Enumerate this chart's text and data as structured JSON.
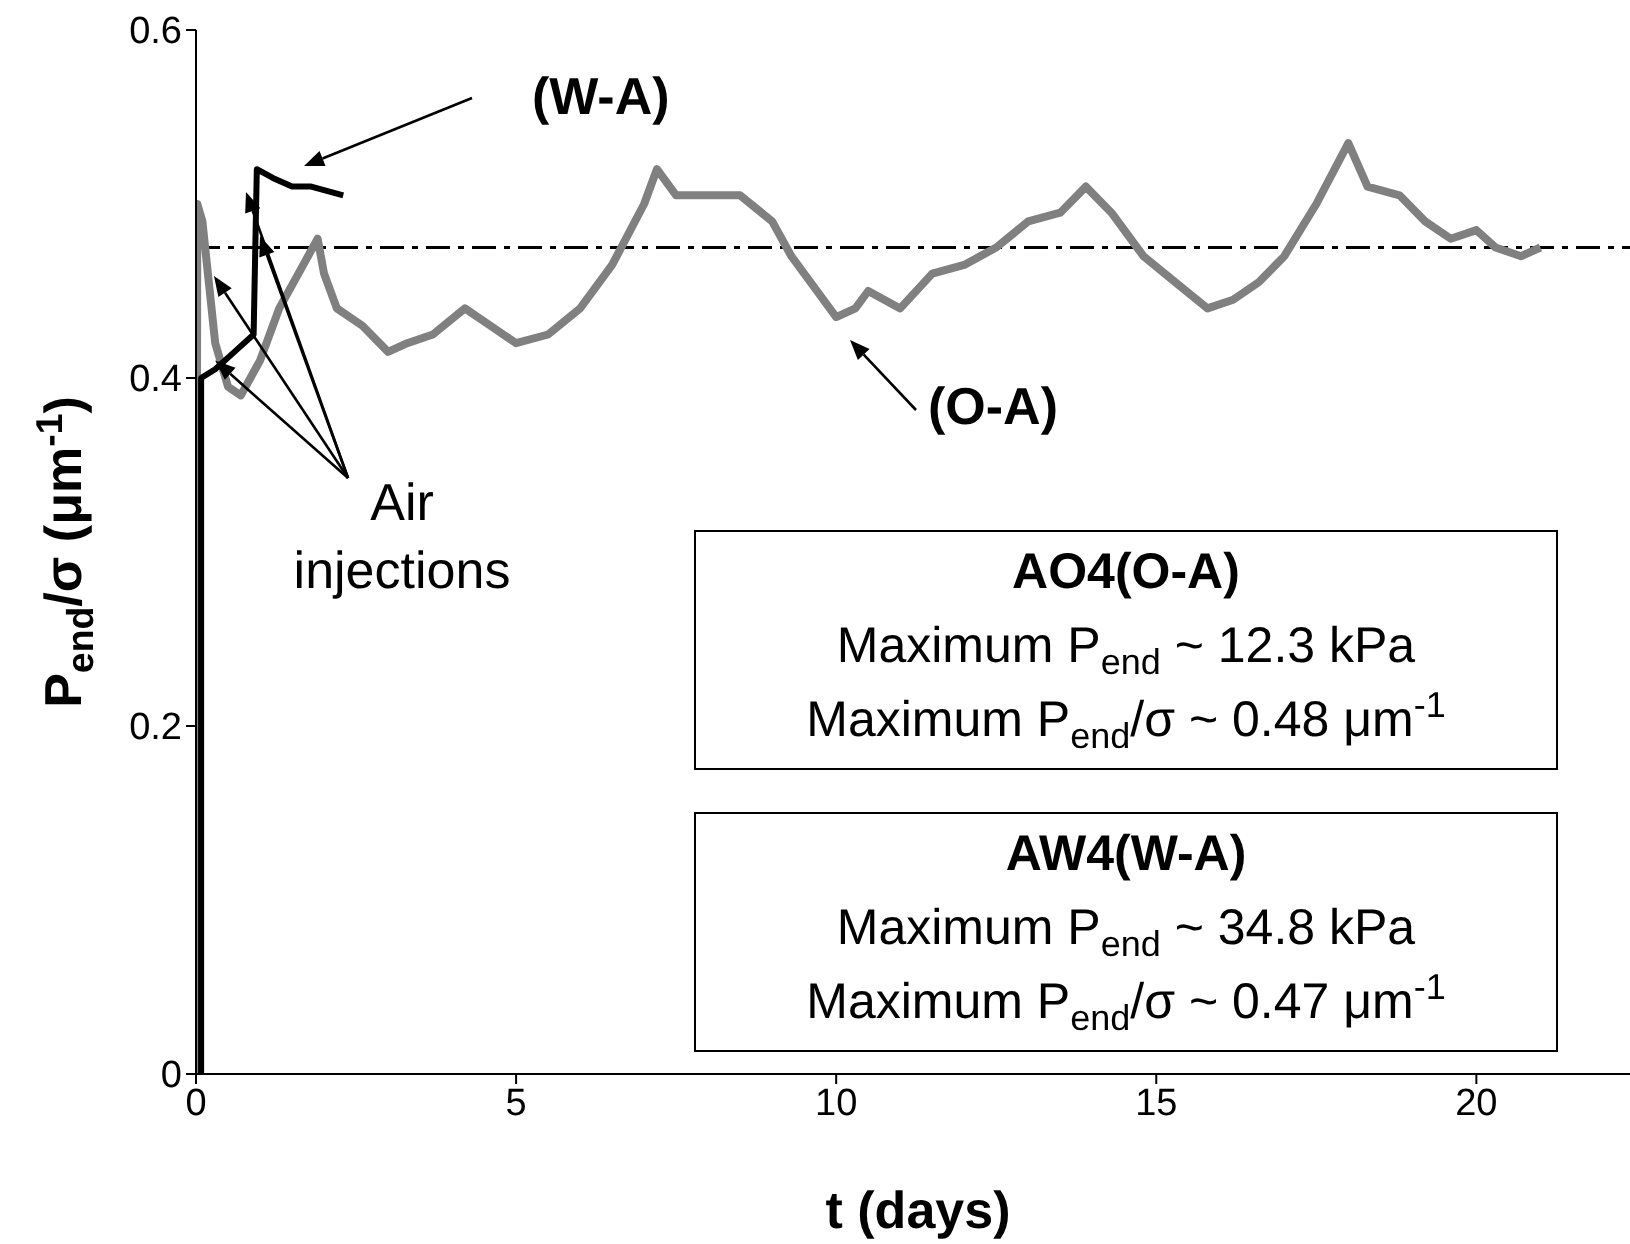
{
  "chart_data": {
    "type": "line",
    "xlabel": "t (days)",
    "ylabel": "P$_{end}$/σ (μm$^{-1}$)",
    "xlim": [
      0,
      22.4
    ],
    "xticks": [
      0,
      5,
      10,
      15,
      20
    ],
    "ylim": [
      0,
      0.6
    ],
    "yticks": [
      0,
      0.2,
      0.4,
      0.6
    ],
    "grid": false,
    "legend": false,
    "marker": "none",
    "series": [
      {
        "color": "#808080",
        "x": [
          0,
          0.02,
          0.1,
          0.3,
          0.5,
          0.7,
          1.0,
          1.3,
          1.6,
          1.9,
          2.0,
          2.2,
          2.6,
          3.0,
          3.3,
          3.7,
          4.2,
          4.6,
          5.0,
          5.5,
          6.0,
          6.5,
          7.0,
          7.2,
          7.5,
          8.0,
          8.5,
          9.0,
          9.3,
          9.7,
          10.0,
          10.3,
          10.5,
          11.0,
          11.5,
          12.0,
          12.5,
          13.0,
          13.5,
          13.9,
          14.3,
          14.8,
          15.3,
          15.8,
          16.2,
          16.6,
          17.0,
          17.5,
          18.0,
          18.3,
          18.8,
          19.2,
          19.6,
          20.0,
          20.3,
          20.7,
          21.0
        ],
        "values": [
          0,
          0.5,
          0.49,
          0.42,
          0.395,
          0.39,
          0.41,
          0.44,
          0.46,
          0.48,
          0.46,
          0.44,
          0.43,
          0.415,
          0.42,
          0.425,
          0.44,
          0.43,
          0.42,
          0.425,
          0.44,
          0.465,
          0.5,
          0.52,
          0.505,
          0.505,
          0.505,
          0.49,
          0.47,
          0.45,
          0.435,
          0.44,
          0.45,
          0.44,
          0.46,
          0.465,
          0.475,
          0.49,
          0.495,
          0.51,
          0.495,
          0.47,
          0.455,
          0.44,
          0.445,
          0.455,
          0.47,
          0.5,
          0.535,
          0.51,
          0.505,
          0.49,
          0.48,
          0.485,
          0.475,
          0.47,
          0.475
        ]
      },
      {
        "color": "#000000",
        "x": [
          0.08,
          0.08,
          0.3,
          0.6,
          0.9,
          0.95,
          1.2,
          1.5,
          1.8,
          2.3
        ],
        "values": [
          0,
          0.4,
          0.405,
          0.415,
          0.425,
          0.52,
          0.515,
          0.51,
          0.51,
          0.505
        ]
      }
    ],
    "ref_lines": [
      {
        "axis": "y",
        "value": 0.475,
        "color": "#000000",
        "line_style": "dashed"
      }
    ],
    "annotations": [
      "(W-A)",
      "(O-A)",
      {
        "text": "Air injections",
        "x": 0.3,
        "y": 0.41
      },
      "AO4(O-A)",
      "Maximum P$_{end}$ ~ 12.3 kPa",
      "Maximum P$_{end}$/σ ~ 0.48 μm$^{-1}$",
      "AW4(W-A)",
      "Maximum P$_{end}$ ~ 34.8 kPa",
      "Maximum P$_{end}$/σ ~ 0.47 μm$^{-1}$"
    ]
  }
}
